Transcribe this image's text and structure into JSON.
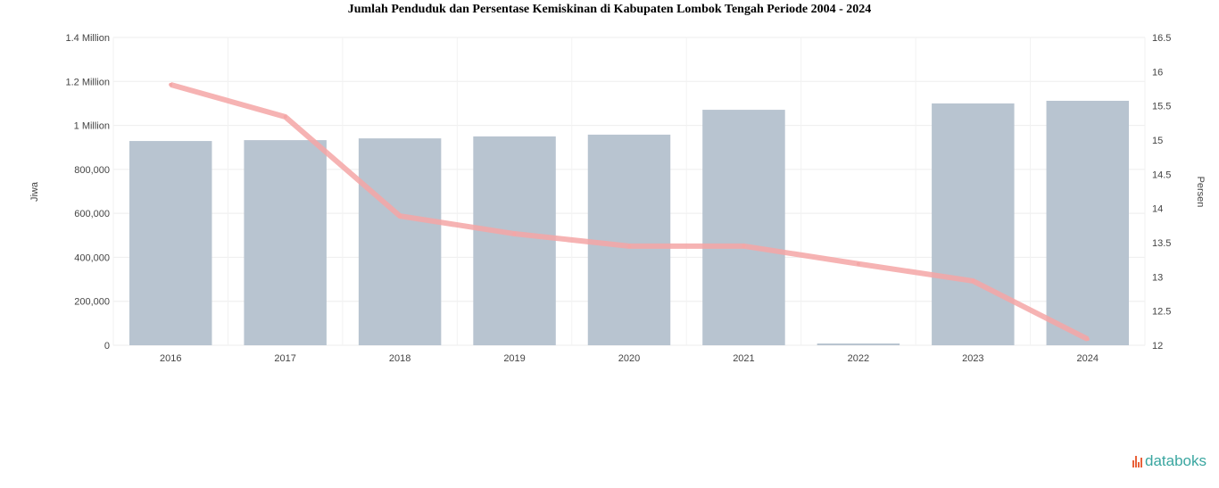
{
  "chart_data": {
    "type": "bar+line",
    "title": "Jumlah Penduduk dan Persentase Kemiskinan di Kabupaten Lombok Tengah Periode 2004 - 2024",
    "categories": [
      "2016",
      "2017",
      "2018",
      "2019",
      "2020",
      "2021",
      "2022",
      "2023",
      "2024"
    ],
    "series": [
      {
        "type": "bar",
        "axis": "left",
        "values": [
          929000,
          933000,
          941000,
          950000,
          958000,
          1071000,
          8000,
          1100000,
          1112000
        ],
        "color": "#b8c4d0"
      },
      {
        "type": "line",
        "axis": "right",
        "values": [
          15.81,
          15.34,
          13.89,
          13.63,
          13.45,
          13.45,
          13.19,
          12.94,
          12.09
        ],
        "color": "#f4a6a6"
      }
    ],
    "ylabel": "Jiwa",
    "y2label": "Persen",
    "ylim": [
      0,
      1400000
    ],
    "y2lim": [
      12,
      16.5
    ],
    "yticks": [
      "0",
      "200,000",
      "400,000",
      "600,000",
      "800,000",
      "1 Million",
      "1.2 Million",
      "1.4 Million"
    ],
    "y2ticks": [
      "12",
      "12.5",
      "13",
      "13.5",
      "14",
      "14.5",
      "15",
      "15.5",
      "16",
      "16.5"
    ],
    "grid": true
  },
  "logo": "databoks"
}
